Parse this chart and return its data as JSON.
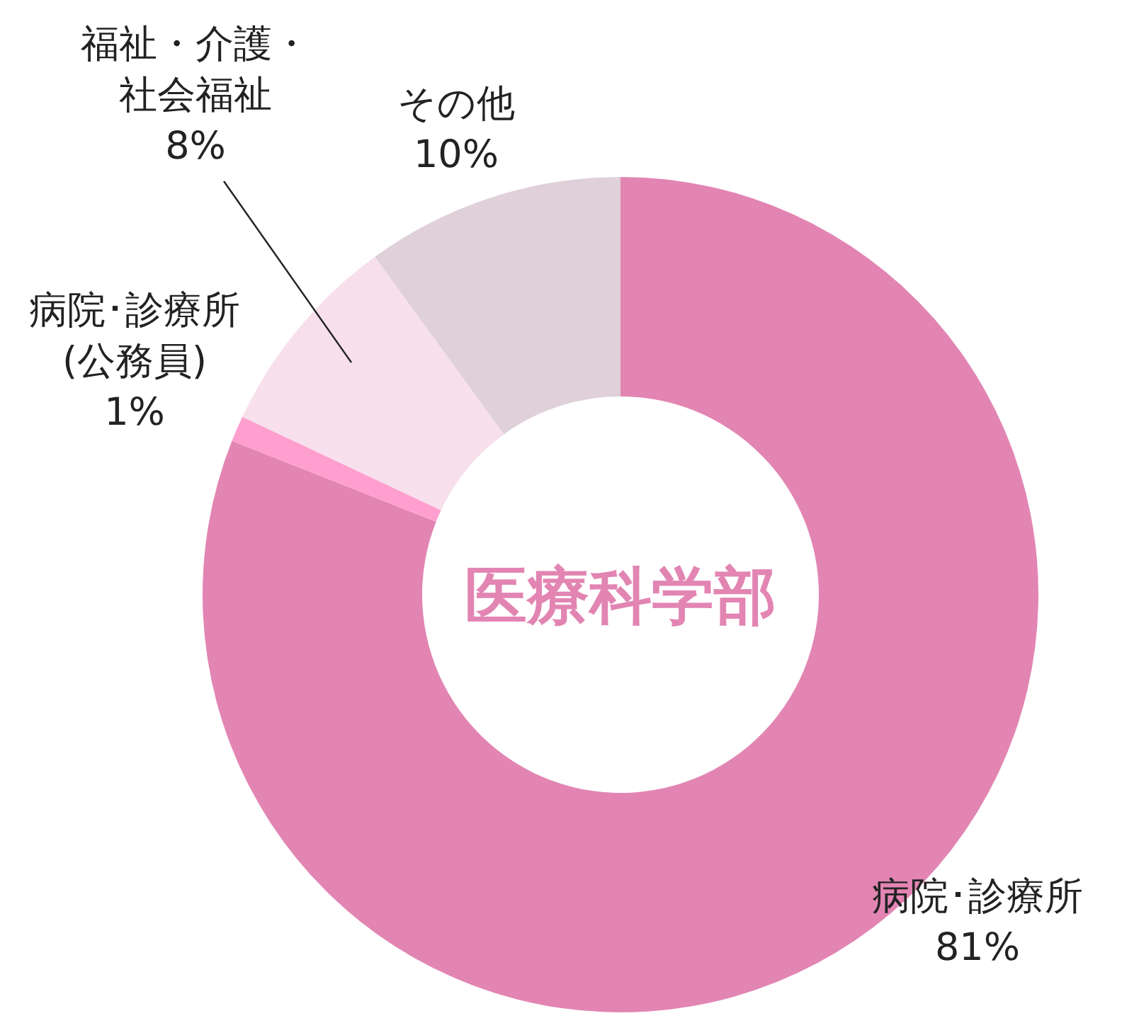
{
  "chart_data": {
    "type": "donut",
    "title": "医療科学部",
    "categories": [
      "病院･診療所",
      "病院･診療所(公務員)",
      "福祉・介護・社会福祉",
      "その他"
    ],
    "values": [
      81,
      1,
      8,
      10
    ],
    "value_labels": [
      "81%",
      "1%",
      "8%",
      "10%"
    ],
    "colors": [
      "#e285b3",
      "#ff9fcf",
      "#f7e0ec",
      "#dfd0d9"
    ]
  }
}
